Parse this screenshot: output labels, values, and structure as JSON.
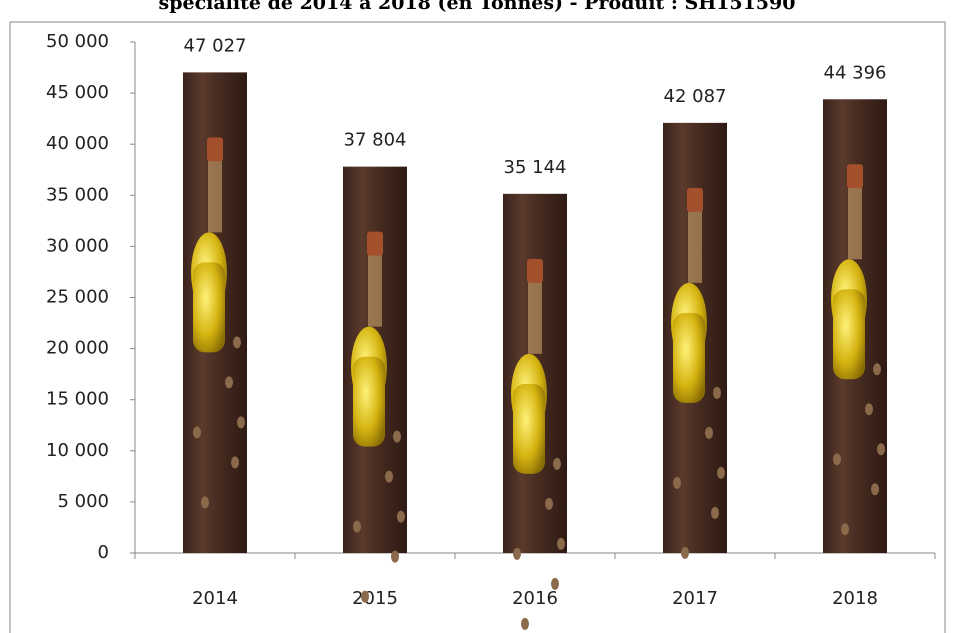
{
  "chart_data": {
    "type": "bar",
    "title": "spécialité de 2014 à 2018 (en Tonnes) - Produit : SH151590",
    "categories": [
      "2014",
      "2015",
      "2016",
      "2017",
      "2018"
    ],
    "values": [
      47027,
      37804,
      35144,
      42087,
      44396
    ],
    "value_labels": [
      "47 027",
      "37 804",
      "35 144",
      "42 087",
      "44 396"
    ],
    "color": "#4a2e22",
    "ylim": [
      0,
      50000
    ],
    "yticks": [
      0,
      {
        "value": 5000,
        "label": "5 000"
      },
      {
        "value": 10000,
        "label": "10 000"
      },
      {
        "value": 15000,
        "label": "15 000"
      },
      {
        "value": 20000,
        "label": "20 000"
      },
      {
        "value": 25000,
        "label": "25 000"
      },
      {
        "value": 30000,
        "label": "30 000"
      },
      {
        "value": 35000,
        "label": "35 000"
      },
      {
        "value": 40000,
        "label": "40 000"
      },
      {
        "value": 45000,
        "label": "45 000"
      },
      {
        "value": 50000,
        "label": "50 000"
      }
    ],
    "grid": false
  }
}
